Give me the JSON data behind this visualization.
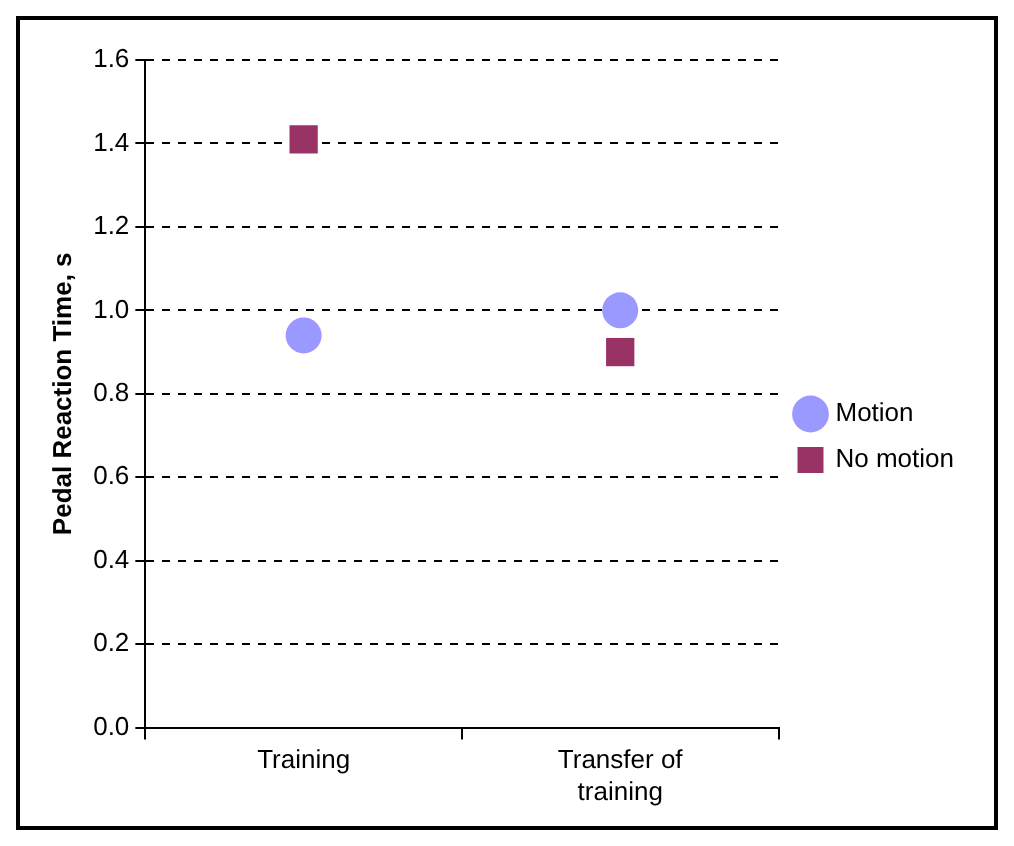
{
  "chart_data": {
    "type": "scatter",
    "ylabel": "Pedal Reaction Time, s",
    "categories": [
      "Training",
      "Transfer of training"
    ],
    "series": [
      {
        "name": "Motion",
        "color": "#9999ff",
        "marker": "circle",
        "values": [
          0.94,
          1.0
        ]
      },
      {
        "name": "No motion",
        "color": "#993366",
        "marker": "square",
        "values": [
          1.41,
          0.9
        ]
      }
    ],
    "ylim": [
      0,
      1.6
    ],
    "yticks": [
      {
        "value": 0,
        "label": "0.0"
      },
      {
        "value": 0.2,
        "label": "0.2"
      },
      {
        "value": 0.4,
        "label": "0.4"
      },
      {
        "value": 0.6,
        "label": "0.6"
      },
      {
        "value": 0.8,
        "label": "0.8"
      },
      {
        "value": 1,
        "label": "1.0"
      },
      {
        "value": 1.2,
        "label": "1.2"
      },
      {
        "value": 1.4,
        "label": "1.4"
      },
      {
        "value": 1.6,
        "label": "1.6"
      }
    ],
    "grid": "y",
    "line_style": "dashed",
    "legend": "right"
  }
}
